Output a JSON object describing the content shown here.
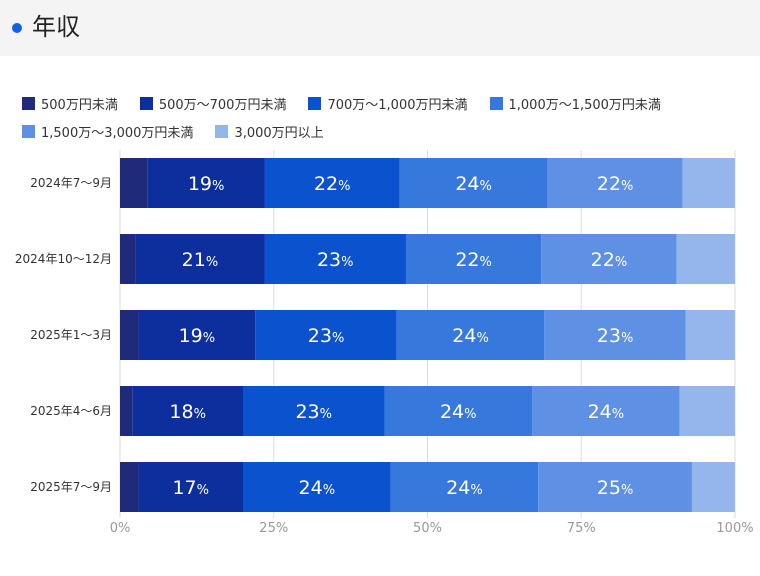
{
  "header": {
    "title": "年収"
  },
  "chart_data": {
    "type": "bar",
    "orientation": "horizontal",
    "stacked": true,
    "categories": [
      "2024年7〜9月",
      "2024年10〜12月",
      "2025年1〜3月",
      "2025年4〜6月",
      "2025年7〜9月"
    ],
    "series": [
      {
        "name": "500万円未満",
        "color": "#1f2a7a",
        "values": [
          4.5,
          2.5,
          3,
          2,
          3
        ],
        "labels": [
          "",
          "",
          "",
          "",
          ""
        ]
      },
      {
        "name": "500万〜700万円未満",
        "color": "#0d2f9e",
        "values": [
          19,
          21,
          19,
          18,
          17
        ],
        "labels": [
          "19",
          "21",
          "19",
          "18",
          "17"
        ]
      },
      {
        "name": "700万〜1,000万円未満",
        "color": "#0b52cf",
        "values": [
          22,
          23,
          23,
          23,
          24
        ],
        "labels": [
          "22",
          "23",
          "23",
          "23",
          "24"
        ]
      },
      {
        "name": "1,000万〜1,500万円未満",
        "color": "#3678dc",
        "values": [
          24,
          22,
          24,
          24,
          24
        ],
        "labels": [
          "24",
          "22",
          "24",
          "24",
          "24"
        ]
      },
      {
        "name": "1,500万〜3,000万円未満",
        "color": "#5e91e3",
        "values": [
          22,
          22,
          23,
          24,
          25
        ],
        "labels": [
          "22",
          "22",
          "23",
          "24",
          "25"
        ]
      },
      {
        "name": "3,000万円以上",
        "color": "#94b6ec",
        "values": [
          8.5,
          9.5,
          8,
          9,
          7
        ],
        "labels": [
          "",
          "",
          "",
          "",
          ""
        ]
      }
    ],
    "value_suffix": "%",
    "xlim": [
      0,
      100
    ],
    "xticks": [
      "0%",
      "25%",
      "50%",
      "75%",
      "100%"
    ],
    "grid": true,
    "legend_position": "top"
  }
}
